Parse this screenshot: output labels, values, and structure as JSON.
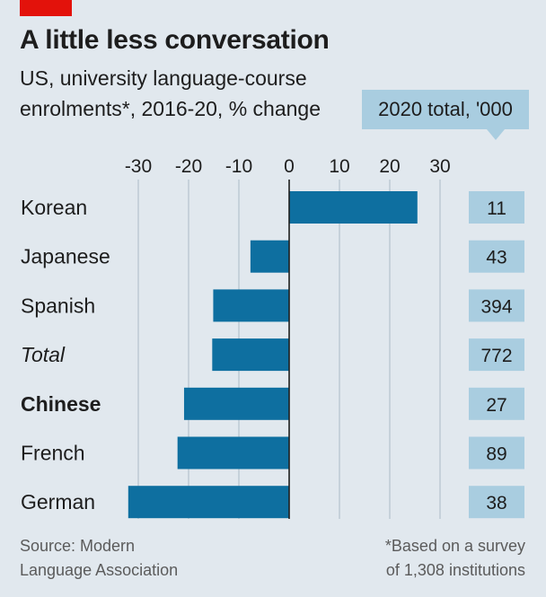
{
  "header": {
    "title": "A little less conversation",
    "subtitle_line1": "US, university language-course",
    "subtitle_line2": "enrolments*, 2016-20, % change",
    "total_box": "2020 total, '000"
  },
  "colors": {
    "bar": "#0e6fa0",
    "total_box": "#a9cde0",
    "brand_red": "#e3120b",
    "grid": "#b3c2cc"
  },
  "chart_data": {
    "type": "bar",
    "orientation": "horizontal",
    "title": "A little less conversation",
    "subtitle": "US, university language-course enrolments*, 2016-20, % change",
    "xlim": [
      -32,
      30
    ],
    "ticks": [
      -30,
      -20,
      -10,
      0,
      10,
      20,
      30
    ],
    "grid": true,
    "categories": [
      "Korean",
      "Japanese",
      "Spanish",
      "Total",
      "Chinese",
      "French",
      "German"
    ],
    "values": [
      25.5,
      -7.7,
      -15.1,
      -15.3,
      -20.9,
      -22.2,
      -32.0
    ],
    "totals_2020_thousands": [
      "11",
      "43",
      "394",
      "772",
      "27",
      "89",
      "38"
    ],
    "category_styles": [
      "normal",
      "normal",
      "normal",
      "italic",
      "bold",
      "normal",
      "normal"
    ]
  },
  "footer": {
    "source_line1": "Source: Modern",
    "source_line2": "Language Association",
    "note_line1": "*Based on a survey",
    "note_line2": "of 1,308 institutions"
  }
}
